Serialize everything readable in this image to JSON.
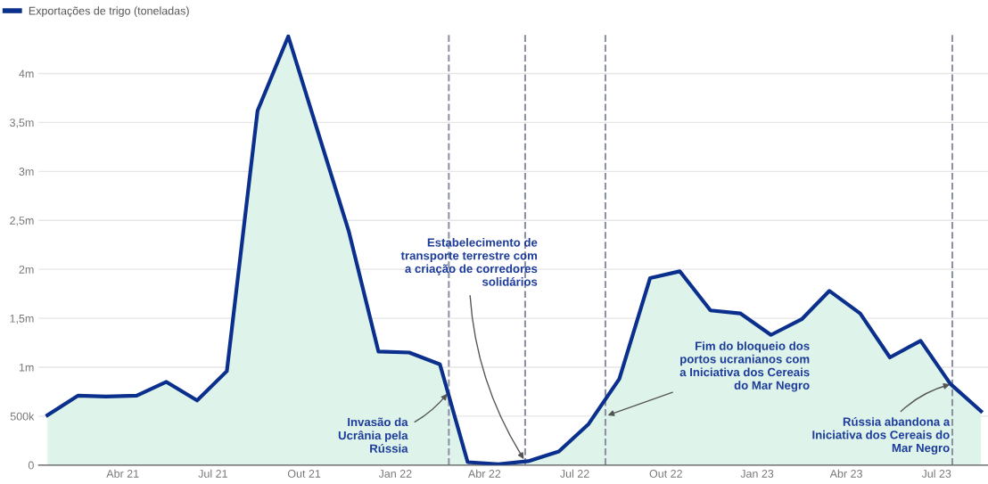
{
  "chart_data": {
    "type": "area",
    "x": [
      "2021-01-15",
      "2021-02-15",
      "2021-03-15",
      "2021-04-15",
      "2021-05-15",
      "2021-06-15",
      "2021-07-15",
      "2021-08-15",
      "2021-09-15",
      "2021-10-15",
      "2021-11-15",
      "2021-12-15",
      "2022-01-15",
      "2022-02-15",
      "2022-03-15",
      "2022-04-15",
      "2022-05-15",
      "2022-06-15",
      "2022-07-15",
      "2022-08-15",
      "2022-09-15",
      "2022-10-15",
      "2022-11-15",
      "2022-12-15",
      "2023-01-15",
      "2023-02-15",
      "2023-03-15",
      "2023-04-15",
      "2023-05-15",
      "2023-06-15",
      "2023-07-15",
      "2023-08-15"
    ],
    "series": [
      {
        "name": "Exportações de trigo (toneladas)",
        "color": "#0b2f8c",
        "values": [
          510000,
          710000,
          700000,
          710000,
          850000,
          660000,
          960000,
          3620000,
          4380000,
          3400000,
          2390000,
          1160000,
          1150000,
          1030000,
          30000,
          10000,
          40000,
          140000,
          420000,
          880000,
          1910000,
          1980000,
          1580000,
          1550000,
          1330000,
          1490000,
          1780000,
          1550000,
          1100000,
          1270000,
          830000,
          550000
        ]
      }
    ],
    "xlim": [
      "2021-01-06",
      "2023-08-22"
    ],
    "xticks": [
      {
        "value": "2021-04-01",
        "label": "Abr 21"
      },
      {
        "value": "2021-07-01",
        "label": "Jul 21"
      },
      {
        "value": "2021-10-01",
        "label": "Out 21"
      },
      {
        "value": "2022-01-01",
        "label": "Jan 22"
      },
      {
        "value": "2022-04-01",
        "label": "Abr 22"
      },
      {
        "value": "2022-07-01",
        "label": "Jul 22"
      },
      {
        "value": "2022-10-01",
        "label": "Out 22"
      },
      {
        "value": "2023-01-01",
        "label": "Jan 23"
      },
      {
        "value": "2023-04-01",
        "label": "Abr 23"
      },
      {
        "value": "2023-07-01",
        "label": "Jul 23"
      }
    ],
    "ylim": [
      0,
      4400000
    ],
    "yticks": [
      0,
      {
        "value": 500000,
        "label": "500k"
      },
      {
        "value": 1000000,
        "label": "1m"
      },
      {
        "value": 1500000,
        "label": "1,5m"
      },
      {
        "value": 2000000,
        "label": "2m"
      },
      {
        "value": 2500000,
        "label": "2,5m"
      },
      {
        "value": 3000000,
        "label": "3m"
      },
      {
        "value": 3500000,
        "label": "3,5m"
      },
      {
        "value": 4000000,
        "label": "4m"
      }
    ],
    "ref_lines": [
      {
        "axis": "x",
        "value": "2022-02-24",
        "color": "#8c92a4",
        "line_style": "dashed"
      },
      {
        "axis": "x",
        "value": "2022-05-12",
        "color": "#8c92a4",
        "line_style": "dashed"
      },
      {
        "axis": "x",
        "value": "2022-08-01",
        "color": "#8c92a4",
        "line_style": "dashed"
      },
      {
        "axis": "x",
        "value": "2023-07-17",
        "color": "#8c92a4",
        "line_style": "dashed"
      }
    ],
    "annotations": [
      {
        "text": "Invasão da\nUcrânia pela\nRússia",
        "x": "2022-02-24",
        "y": 750000
      },
      {
        "text": "Estabelecimento de\ntransporte terrestre com\na criação de corredores\nsolidários",
        "x": "2022-05-12",
        "y": 40000
      },
      {
        "text": "Fim do bloqueio dos\nportos ucranianos com\na Iniciativa dos Cereais\ndo Mar Negro",
        "x": "2022-08-01",
        "y": 500000
      },
      {
        "text": "Rússia abandona a\nIniciativa dos Cereais do\nMar Negro",
        "x": "2023-07-17",
        "y": 830000
      }
    ],
    "grid": "y",
    "legend": "top left",
    "marker": "none",
    "line_style": "solid"
  }
}
